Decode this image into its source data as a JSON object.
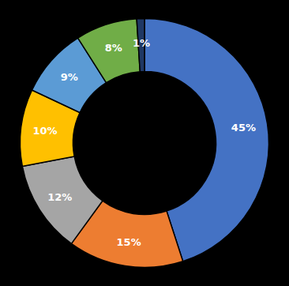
{
  "chart_data": {
    "type": "pie",
    "values": [
      45,
      15,
      12,
      10,
      9,
      8,
      1
    ],
    "value_labels": [
      "45%",
      "15%",
      "12%",
      "10%",
      "9%",
      "8%",
      "1%"
    ],
    "colors": [
      "#4472C4",
      "#ED7D31",
      "#A5A5A5",
      "#FFC000",
      "#5B9BD5",
      "#70AD47",
      "#203864"
    ],
    "data_labels": true
  }
}
